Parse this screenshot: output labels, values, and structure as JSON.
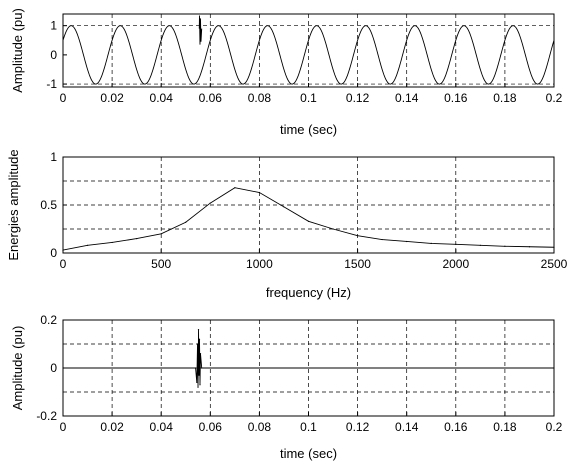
{
  "chart_data": [
    {
      "type": "line",
      "xlabel": "time (sec)",
      "ylabel": "Amplitude (pu)",
      "xlim": [
        0,
        0.2
      ],
      "ylim": [
        -1.1,
        1.4
      ],
      "xticks": [
        0,
        0.02,
        0.04,
        0.06,
        0.08,
        0.1,
        0.12,
        0.14,
        0.16,
        0.18,
        0.2
      ],
      "xtick_labels": [
        "0",
        "0.02",
        "0.04",
        "0.06",
        "0.08",
        "0.1",
        "0.12",
        "0.14",
        "0.16",
        "0.18",
        "0.2"
      ],
      "yticks": [
        -1,
        0,
        1
      ],
      "ytick_labels": [
        "-1",
        "0",
        "1"
      ],
      "grid": true,
      "signal": {
        "description": "sinusoid",
        "amplitude": 1.0,
        "frequency_hz": 50,
        "phase_deg": 30,
        "transient": {
          "x": [
            0.0555,
            0.0556,
            0.0558,
            0.056,
            0.0562,
            0.0565
          ],
          "y": [
            0.9,
            1.35,
            0.35,
            1.25,
            0.45,
            0.9
          ]
        }
      }
    },
    {
      "type": "line",
      "xlabel": "frequency (Hz)",
      "ylabel": "Energies amplitude",
      "xlim": [
        0,
        2500
      ],
      "ylim": [
        0,
        1
      ],
      "xticks": [
        0,
        500,
        1000,
        1500,
        2000,
        2500
      ],
      "xtick_labels": [
        "0",
        "500",
        "1000",
        "1500",
        "2000",
        "2500"
      ],
      "yticks": [
        0,
        0.5,
        1
      ],
      "ytick_labels": [
        "0",
        "0.5",
        "1"
      ],
      "hgrid": [
        0.25,
        0.5,
        0.75
      ],
      "grid": true,
      "x": [
        0,
        125,
        250,
        375,
        500,
        625,
        750,
        875,
        1000,
        1125,
        1250,
        1375,
        1500,
        1625,
        1750,
        1875,
        2000,
        2125,
        2250,
        2375,
        2500
      ],
      "y": [
        0.03,
        0.08,
        0.11,
        0.15,
        0.2,
        0.32,
        0.52,
        0.68,
        0.63,
        0.48,
        0.33,
        0.25,
        0.18,
        0.14,
        0.12,
        0.1,
        0.09,
        0.08,
        0.07,
        0.065,
        0.06
      ]
    },
    {
      "type": "line",
      "xlabel": "time (sec)",
      "ylabel": "Amplitude (pu)",
      "xlim": [
        0,
        0.2
      ],
      "ylim": [
        -0.2,
        0.2
      ],
      "xticks": [
        0,
        0.02,
        0.04,
        0.06,
        0.08,
        0.1,
        0.12,
        0.14,
        0.16,
        0.18,
        0.2
      ],
      "xtick_labels": [
        "0",
        "0.02",
        "0.04",
        "0.06",
        "0.08",
        "0.1",
        "0.12",
        "0.14",
        "0.16",
        "0.18",
        "0.2"
      ],
      "yticks": [
        -0.2,
        0,
        0.2
      ],
      "ytick_labels": [
        "-0.2",
        "0",
        "0.2"
      ],
      "hgrid": [
        -0.1,
        0.1
      ],
      "grid": true,
      "x": [
        0,
        0.054,
        0.0545,
        0.0548,
        0.055,
        0.0552,
        0.0554,
        0.0556,
        0.0558,
        0.056,
        0.0565,
        0.2
      ],
      "y": [
        0,
        0,
        -0.06,
        0.1,
        -0.08,
        0.16,
        -0.03,
        0.12,
        -0.07,
        0.06,
        0,
        0
      ]
    }
  ]
}
